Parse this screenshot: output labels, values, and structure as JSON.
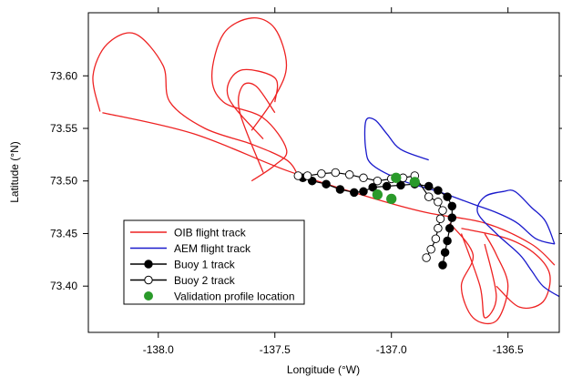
{
  "chart_data": {
    "type": "line",
    "xlabel": "Longitude (°W)",
    "ylabel": "Latitude (°N)",
    "xlim": [
      -138.3,
      -136.28
    ],
    "ylim": [
      73.356,
      73.66
    ],
    "xticks": [
      -138.0,
      -137.5,
      -137.0,
      -136.5
    ],
    "xtick_labels": [
      "-138.0",
      "-137.5",
      "-137.0",
      "-136.5"
    ],
    "yticks": [
      73.4,
      73.45,
      73.5,
      73.55,
      73.6
    ],
    "ytick_labels": [
      "73.40",
      "73.45",
      "73.50",
      "73.55",
      "73.60"
    ],
    "grid": false,
    "legend_position": "bottom-left",
    "colors": {
      "oib": "#ee2222",
      "aem": "#1a1acc",
      "buoy": "#000000",
      "validation": "#2a9a2a"
    },
    "series": [
      {
        "name": "OIB flight track",
        "kind": "line",
        "color": "#ee2222",
        "paths": [
          [
            [
              -138.25,
              73.566
            ],
            [
              -138.28,
              73.6
            ],
            [
              -138.22,
              73.63
            ],
            [
              -138.1,
              73.64
            ],
            [
              -137.98,
              73.61
            ],
            [
              -137.95,
              73.575
            ],
            [
              -137.8,
              73.55
            ],
            [
              -137.6,
              73.535
            ],
            [
              -137.45,
              73.52
            ],
            [
              -137.4,
              73.505
            ]
          ],
          [
            [
              -138.24,
              73.565
            ],
            [
              -137.85,
              73.545
            ],
            [
              -137.45,
              73.51
            ],
            [
              -137.1,
              73.485
            ],
            [
              -136.85,
              73.47
            ],
            [
              -136.6,
              73.46
            ],
            [
              -136.4,
              73.44
            ],
            [
              -136.3,
              73.42
            ]
          ],
          [
            [
              -137.6,
              73.5
            ],
            [
              -137.5,
              73.515
            ],
            [
              -137.45,
              73.53
            ],
            [
              -137.55,
              73.56
            ],
            [
              -137.72,
              73.575
            ],
            [
              -137.77,
              73.6
            ],
            [
              -137.72,
              73.64
            ],
            [
              -137.6,
              73.655
            ],
            [
              -137.5,
              73.645
            ],
            [
              -137.45,
              73.61
            ],
            [
              -137.5,
              73.58
            ],
            [
              -137.6,
              73.548
            ]
          ],
          [
            [
              -137.55,
              73.54
            ],
            [
              -137.7,
              73.58
            ],
            [
              -137.65,
              73.605
            ],
            [
              -137.5,
              73.598
            ],
            [
              -137.5,
              73.575
            ]
          ],
          [
            [
              -137.55,
              73.508
            ],
            [
              -137.65,
              73.565
            ],
            [
              -137.64,
              73.59
            ],
            [
              -137.58,
              73.59
            ],
            [
              -137.5,
              73.565
            ]
          ],
          [
            [
              -136.75,
              73.46
            ],
            [
              -136.65,
              73.43
            ],
            [
              -136.7,
              73.4
            ],
            [
              -136.65,
              73.37
            ],
            [
              -136.55,
              73.367
            ],
            [
              -136.5,
              73.4
            ],
            [
              -136.55,
              73.43
            ],
            [
              -136.6,
              73.45
            ]
          ],
          [
            [
              -136.7,
              73.45
            ],
            [
              -136.62,
              73.4
            ],
            [
              -136.6,
              73.37
            ],
            [
              -136.55,
              73.39
            ],
            [
              -136.6,
              73.44
            ]
          ],
          [
            [
              -136.7,
              73.455
            ],
            [
              -136.5,
              73.445
            ],
            [
              -136.38,
              73.43
            ],
            [
              -136.32,
              73.41
            ],
            [
              -136.35,
              73.385
            ],
            [
              -136.45,
              73.38
            ],
            [
              -136.55,
              73.4
            ]
          ]
        ]
      },
      {
        "name": "AEM flight track",
        "kind": "line",
        "color": "#1a1acc",
        "paths": [
          [
            [
              -136.84,
              73.52
            ],
            [
              -136.96,
              73.53
            ],
            [
              -137.02,
              73.545
            ],
            [
              -137.07,
              73.558
            ],
            [
              -137.11,
              73.557
            ],
            [
              -137.11,
              73.53
            ],
            [
              -137.08,
              73.515
            ],
            [
              -136.95,
              73.5
            ],
            [
              -136.8,
              73.49
            ],
            [
              -136.65,
              73.478
            ],
            [
              -136.55,
              73.47
            ],
            [
              -136.46,
              73.46
            ],
            [
              -136.38,
              73.445
            ],
            [
              -136.3,
              73.44
            ]
          ],
          [
            [
              -136.3,
              73.44
            ],
            [
              -136.34,
              73.462
            ],
            [
              -136.4,
              73.475
            ],
            [
              -136.47,
              73.49
            ],
            [
              -136.52,
              73.49
            ],
            [
              -136.6,
              73.485
            ],
            [
              -136.63,
              73.47
            ],
            [
              -136.55,
              73.45
            ],
            [
              -136.45,
              73.43
            ],
            [
              -136.4,
              73.415
            ],
            [
              -136.35,
              73.4
            ],
            [
              -136.28,
              73.39
            ]
          ]
        ]
      },
      {
        "name": "Buoy 1 track",
        "kind": "line+marker",
        "marker": "filled",
        "color": "#000000",
        "points": [
          [
            -137.38,
            73.503
          ],
          [
            -137.34,
            73.5
          ],
          [
            -137.28,
            73.497
          ],
          [
            -137.22,
            73.492
          ],
          [
            -137.16,
            73.489
          ],
          [
            -137.12,
            73.49
          ],
          [
            -137.08,
            73.494
          ],
          [
            -137.02,
            73.495
          ],
          [
            -136.96,
            73.496
          ],
          [
            -136.9,
            73.497
          ],
          [
            -136.84,
            73.495
          ],
          [
            -136.8,
            73.491
          ],
          [
            -136.76,
            73.485
          ],
          [
            -136.74,
            73.476
          ],
          [
            -136.74,
            73.465
          ],
          [
            -136.75,
            73.455
          ],
          [
            -136.76,
            73.443
          ],
          [
            -136.77,
            73.432
          ],
          [
            -136.78,
            73.42
          ]
        ]
      },
      {
        "name": "Buoy 2 track",
        "kind": "line+marker",
        "marker": "open",
        "color": "#000000",
        "points": [
          [
            -137.4,
            73.505
          ],
          [
            -137.36,
            73.505
          ],
          [
            -137.3,
            73.507
          ],
          [
            -137.24,
            73.508
          ],
          [
            -137.18,
            73.506
          ],
          [
            -137.12,
            73.503
          ],
          [
            -137.06,
            73.5
          ],
          [
            -137.0,
            73.502
          ],
          [
            -136.95,
            73.503
          ],
          [
            -136.9,
            73.505
          ],
          [
            -136.84,
            73.485
          ],
          [
            -136.8,
            73.48
          ],
          [
            -136.78,
            73.472
          ],
          [
            -136.79,
            73.464
          ],
          [
            -136.8,
            73.455
          ],
          [
            -136.81,
            73.445
          ],
          [
            -136.83,
            73.435
          ],
          [
            -136.85,
            73.427
          ]
        ]
      },
      {
        "name": "Validation profile location",
        "kind": "marker",
        "marker": "filled",
        "color": "#2a9a2a",
        "points": [
          [
            -136.98,
            73.503
          ],
          [
            -136.9,
            73.499
          ],
          [
            -137.06,
            73.487
          ],
          [
            -137.0,
            73.483
          ]
        ]
      }
    ]
  }
}
